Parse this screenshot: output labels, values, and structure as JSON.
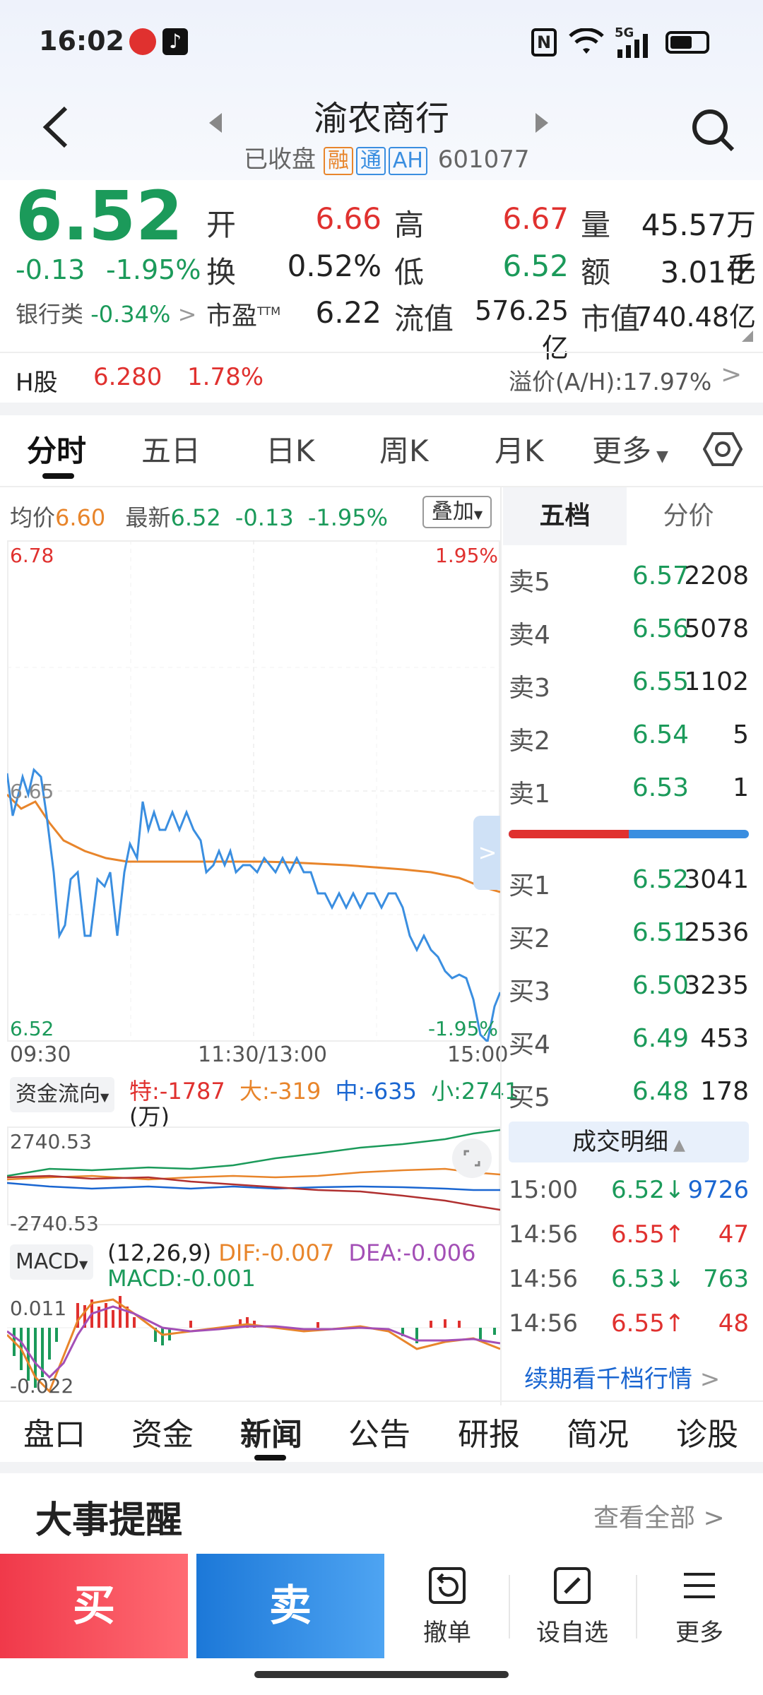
{
  "status": {
    "time": "16:02",
    "network": "5G"
  },
  "header": {
    "title": "渝农商行",
    "state": "已收盘",
    "tags": [
      "融",
      "通",
      "AH"
    ],
    "code": "601077"
  },
  "quote": {
    "price": "6.52",
    "change": "-0.13",
    "change_pct": "-1.95%",
    "sector": "银行类",
    "sector_pct": "-0.34%",
    "open_label": "开",
    "open": "6.66",
    "high_label": "高",
    "high": "6.67",
    "volume_label": "量",
    "volume": "45.57万手",
    "turnover_label": "换",
    "turnover": "0.52%",
    "low_label": "低",
    "low": "6.52",
    "amount_label": "额",
    "amount": "3.01亿",
    "pe_label": "市盈",
    "pe_sup": "TTM",
    "pe": "6.22",
    "float_cap_label": "流值",
    "float_cap": "576.25亿",
    "mkt_cap_label": "市值",
    "mkt_cap": "740.48亿"
  },
  "hshare": {
    "label": "H股",
    "price": "6.280",
    "pct": "1.78%",
    "premium": "溢价(A/H):17.97%"
  },
  "chart_tabs": [
    "分时",
    "五日",
    "日K",
    "周K",
    "月K",
    "更多"
  ],
  "intraday": {
    "avg_label": "均价",
    "avg": "6.60",
    "latest_label": "最新",
    "latest": "6.52",
    "chg": "-0.13",
    "pct": "-1.95%",
    "overlay": "叠加",
    "y_top": "6.78",
    "y_top_pct": "1.95%",
    "y_mid": "6.65",
    "y_bot": "6.52",
    "y_bot_pct": "-1.95%",
    "x_start": "09:30",
    "x_mid": "11:30/13:00",
    "x_end": "15:00"
  },
  "fund_flow": {
    "label": "资金流向",
    "te": "特:-1787",
    "da": "大:-319",
    "zhong": "中:-635",
    "xiao": "小:2741",
    "unit": "(万)",
    "top": "2740.53",
    "bot": "-2740.53"
  },
  "macd": {
    "label": "MACD",
    "params": "(12,26,9)",
    "dif": "DIF:-0.007",
    "dea": "DEA:-0.006",
    "macd": "MACD:-0.001",
    "top": "0.011",
    "bot": "-0.022"
  },
  "orderbook": {
    "tabs": [
      "五档",
      "分价"
    ],
    "asks": [
      {
        "label": "卖5",
        "price": "6.57",
        "vol": "2208"
      },
      {
        "label": "卖4",
        "price": "6.56",
        "vol": "5078"
      },
      {
        "label": "卖3",
        "price": "6.55",
        "vol": "1102"
      },
      {
        "label": "卖2",
        "price": "6.54",
        "vol": "5"
      },
      {
        "label": "卖1",
        "price": "6.53",
        "vol": "1"
      }
    ],
    "bids": [
      {
        "label": "买1",
        "price": "6.52",
        "vol": "3041"
      },
      {
        "label": "买2",
        "price": "6.51",
        "vol": "2536"
      },
      {
        "label": "买3",
        "price": "6.50",
        "vol": "3235"
      },
      {
        "label": "买4",
        "price": "6.49",
        "vol": "453"
      },
      {
        "label": "买5",
        "price": "6.48",
        "vol": "178"
      }
    ],
    "ask_ratio": 0.5
  },
  "trades": {
    "title": "成交明细",
    "rows": [
      {
        "time": "15:00",
        "price": "6.52↓",
        "vol": "9726",
        "dir": "down"
      },
      {
        "time": "14:56",
        "price": "6.55↑",
        "vol": "47",
        "dir": "up"
      },
      {
        "time": "14:56",
        "price": "6.53↓",
        "vol": "763",
        "dir": "down"
      },
      {
        "time": "14:56",
        "price": "6.55↑",
        "vol": "48",
        "dir": "up"
      }
    ],
    "more": "续期看千档行情"
  },
  "bottom_tabs": [
    "盘口",
    "资金",
    "新闻",
    "公告",
    "研报",
    "简况",
    "诊股"
  ],
  "events": {
    "title": "大事提醒",
    "view_all": "查看全部"
  },
  "actions": {
    "buy": "买",
    "sell": "卖",
    "cancel": "撤单",
    "watch": "设自选",
    "more": "更多"
  },
  "colors": {
    "up": "#e0312f",
    "down": "#1b9a5a",
    "price_line": "#3a8ee0",
    "avg_line": "#e8852b"
  }
}
